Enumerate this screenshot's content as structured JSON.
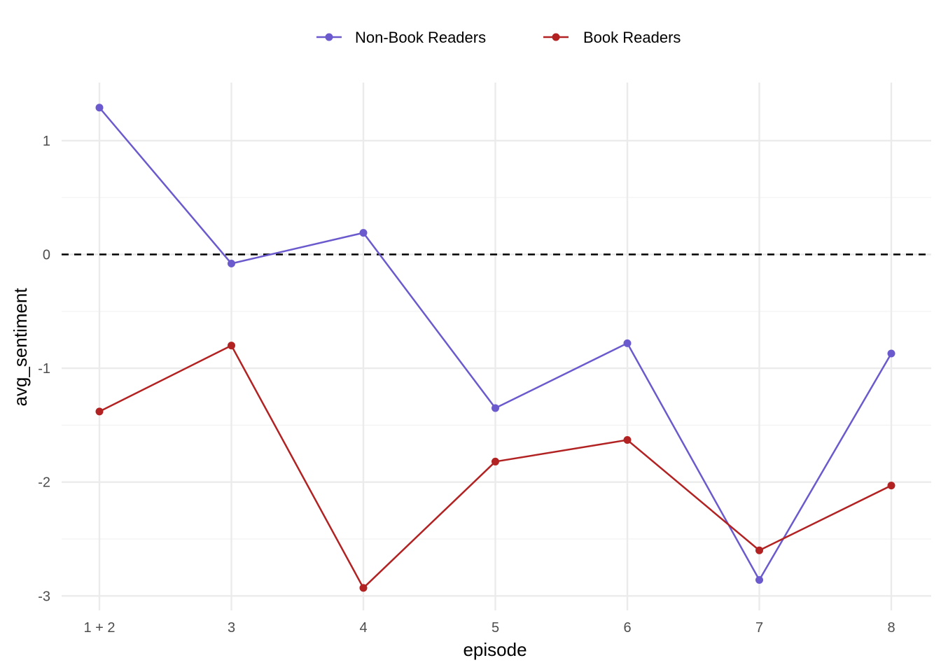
{
  "chart_data": {
    "type": "line",
    "xlabel": "episode",
    "ylabel": "avg_sentiment",
    "categories": [
      "1 + 2",
      "3",
      "4",
      "5",
      "6",
      "7",
      "8"
    ],
    "ylim": [
      -3.13,
      1.5
    ],
    "yticks": [
      -3,
      -2,
      -1,
      0,
      1
    ],
    "ytick_labels": [
      "-3",
      "-2",
      "-1",
      "0",
      "1"
    ],
    "reference_line": {
      "y": 0,
      "style": "dashed",
      "color": "#000000"
    },
    "grid": true,
    "legend_position": "top",
    "series": [
      {
        "name": "Non-Book Readers",
        "color": "#6a5acd",
        "values": [
          1.29,
          -0.08,
          0.19,
          -1.35,
          -0.78,
          -2.86,
          -0.87
        ]
      },
      {
        "name": "Book Readers",
        "color": "#b22222",
        "values": [
          -1.38,
          -0.8,
          -2.93,
          -1.82,
          -1.63,
          -2.6,
          -2.03
        ]
      }
    ]
  }
}
